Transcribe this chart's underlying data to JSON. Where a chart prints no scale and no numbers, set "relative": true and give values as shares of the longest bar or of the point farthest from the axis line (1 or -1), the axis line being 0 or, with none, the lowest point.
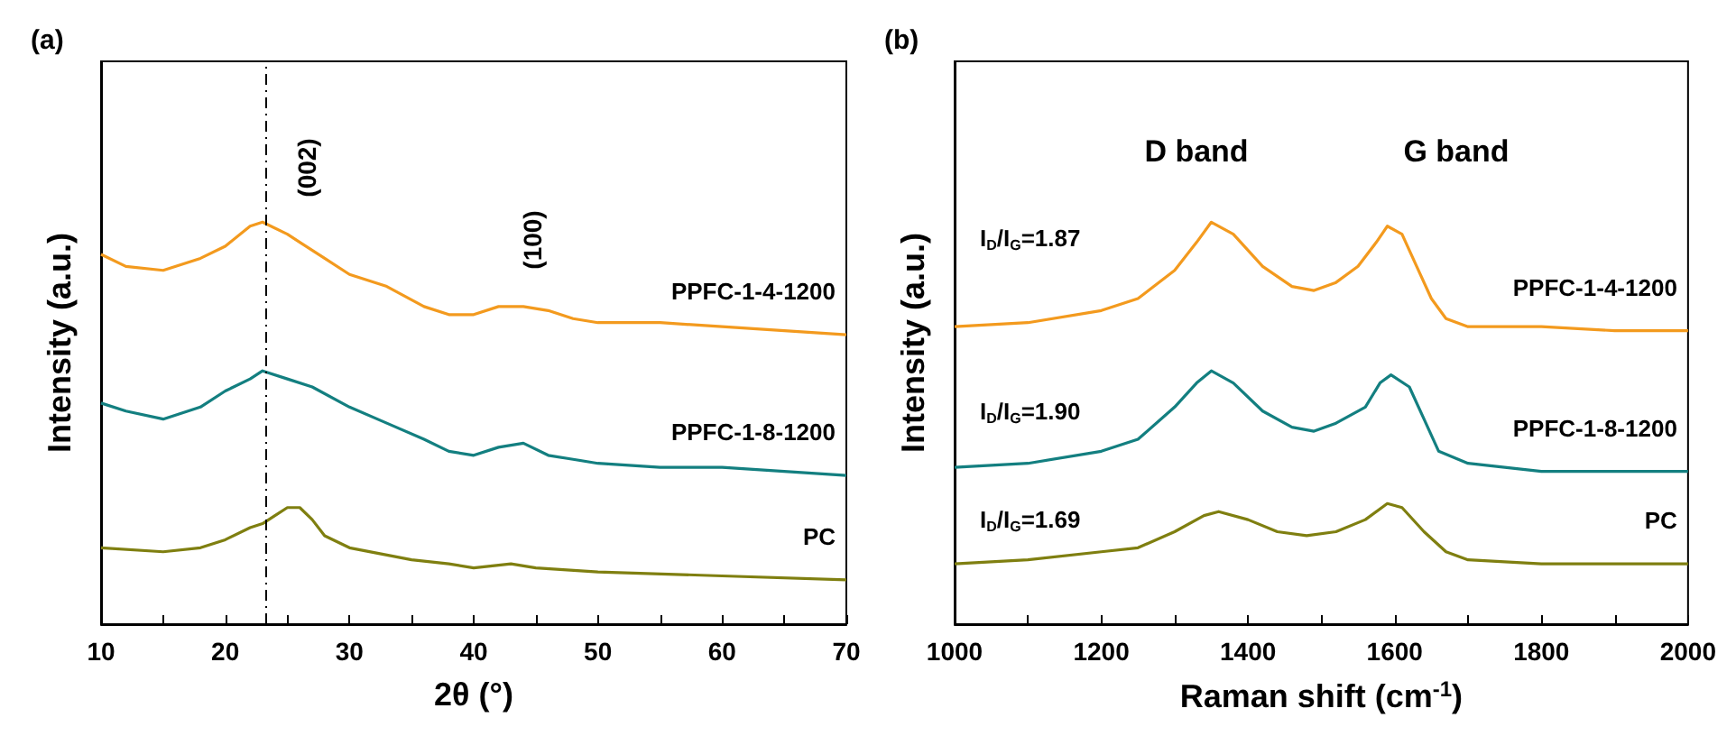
{
  "chart_data": [
    {
      "type": "line",
      "title": "(a)",
      "xlabel": "2θ (°)",
      "ylabel": "Intensity (a.u.)",
      "relative": true,
      "xlim": [
        10,
        70
      ],
      "xticks": [
        10,
        {
          "value": 15,
          "label": null
        },
        20,
        {
          "value": 25,
          "label": null
        },
        30,
        {
          "value": 35,
          "label": null
        },
        40,
        {
          "value": 45,
          "label": null
        },
        50,
        {
          "value": 55,
          "label": null
        },
        60,
        {
          "value": 65,
          "label": null
        },
        70
      ],
      "ref_lines": [
        {
          "axis": "x",
          "value": 23.2,
          "color": "#000000",
          "line_style": "dashed"
        }
      ],
      "annotations": [
        "(002)",
        "(100)"
      ],
      "series": [
        {
          "name": "PPFC-1-4-1200",
          "color": "#f39a1e",
          "x": [
            10,
            12,
            15,
            18,
            20,
            22,
            23,
            25,
            26,
            28,
            30,
            33,
            36,
            38,
            40,
            42,
            44,
            46,
            48,
            50,
            55,
            60,
            65,
            70
          ],
          "values": [
            0.92,
            0.89,
            0.88,
            0.91,
            0.94,
            0.99,
            1.0,
            0.97,
            0.95,
            0.91,
            0.87,
            0.84,
            0.79,
            0.77,
            0.77,
            0.79,
            0.79,
            0.78,
            0.76,
            0.75,
            0.75,
            0.74,
            0.73,
            0.72
          ]
        },
        {
          "name": "PPFC-1-8-1200",
          "color": "#137f80",
          "x": [
            10,
            12,
            15,
            18,
            20,
            22,
            23,
            25,
            27,
            30,
            33,
            36,
            38,
            40,
            42,
            44,
            46,
            48,
            50,
            55,
            60,
            65,
            70
          ],
          "values": [
            0.55,
            0.53,
            0.51,
            0.54,
            0.58,
            0.61,
            0.63,
            0.61,
            0.59,
            0.54,
            0.5,
            0.46,
            0.43,
            0.42,
            0.44,
            0.45,
            0.42,
            0.41,
            0.4,
            0.39,
            0.39,
            0.38,
            0.37
          ]
        },
        {
          "name": "PC",
          "color": "#7f7f10",
          "x": [
            10,
            15,
            18,
            20,
            22,
            23,
            24,
            25,
            26,
            27,
            28,
            30,
            35,
            38,
            40,
            43,
            45,
            50,
            60,
            70
          ],
          "values": [
            0.19,
            0.18,
            0.19,
            0.21,
            0.24,
            0.25,
            0.27,
            0.29,
            0.29,
            0.26,
            0.22,
            0.19,
            0.16,
            0.15,
            0.14,
            0.15,
            0.14,
            0.13,
            0.12,
            0.11
          ]
        }
      ]
    },
    {
      "type": "line",
      "title": "(b)",
      "xlabel": "Raman shift (cm$^{-1}$)",
      "ylabel": "Intensity (a.u.)",
      "relative": true,
      "xlim": [
        1000,
        2000
      ],
      "xticks": [
        1000,
        {
          "value": 1100,
          "label": null
        },
        1200,
        {
          "value": 1300,
          "label": null
        },
        1400,
        {
          "value": 1500,
          "label": null
        },
        1600,
        {
          "value": 1700,
          "label": null
        },
        1800,
        {
          "value": 1900,
          "label": null
        },
        2000
      ],
      "annotations": [
        "D band",
        "G band",
        "I$_{D}$/I$_{G}$=1.87",
        "I$_{D}$/I$_{G}$=1.90",
        "I$_{D}$/I$_{G}$=1.69"
      ],
      "series": [
        {
          "name": "PPFC-1-4-1200",
          "color": "#f39a1e",
          "x": [
            1000,
            1100,
            1200,
            1250,
            1300,
            1330,
            1350,
            1380,
            1420,
            1460,
            1490,
            1520,
            1550,
            1575,
            1590,
            1610,
            1630,
            1650,
            1670,
            1700,
            1800,
            1900,
            2000
          ],
          "values": [
            0.74,
            0.75,
            0.78,
            0.81,
            0.88,
            0.95,
            1.0,
            0.97,
            0.89,
            0.84,
            0.83,
            0.85,
            0.89,
            0.95,
            0.99,
            0.97,
            0.89,
            0.81,
            0.76,
            0.74,
            0.74,
            0.73,
            0.73
          ]
        },
        {
          "name": "PPFC-1-8-1200",
          "color": "#137f80",
          "x": [
            1000,
            1100,
            1200,
            1250,
            1300,
            1330,
            1350,
            1380,
            1420,
            1460,
            1490,
            1520,
            1560,
            1580,
            1595,
            1620,
            1640,
            1660,
            1700,
            1800,
            1900,
            2000
          ],
          "values": [
            0.39,
            0.4,
            0.43,
            0.46,
            0.54,
            0.6,
            0.63,
            0.6,
            0.53,
            0.49,
            0.48,
            0.5,
            0.54,
            0.6,
            0.62,
            0.59,
            0.51,
            0.43,
            0.4,
            0.38,
            0.38,
            0.38
          ]
        },
        {
          "name": "PC",
          "color": "#7f7f10",
          "x": [
            1000,
            1100,
            1200,
            1250,
            1300,
            1340,
            1360,
            1400,
            1440,
            1480,
            1520,
            1560,
            1590,
            1610,
            1640,
            1670,
            1700,
            1800,
            1900,
            2000
          ],
          "values": [
            0.15,
            0.16,
            0.18,
            0.19,
            0.23,
            0.27,
            0.28,
            0.26,
            0.23,
            0.22,
            0.23,
            0.26,
            0.3,
            0.29,
            0.23,
            0.18,
            0.16,
            0.15,
            0.15,
            0.15
          ]
        }
      ]
    }
  ]
}
